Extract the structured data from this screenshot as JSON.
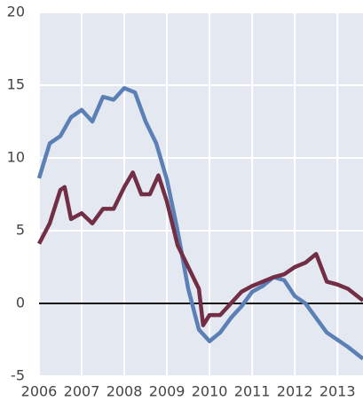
{
  "chart_data": {
    "type": "line",
    "xlim": [
      2006,
      2013.6
    ],
    "xticks": [
      2006,
      2007,
      2008,
      2009,
      2010,
      2011,
      2012,
      2013
    ],
    "ylim": [
      -5,
      20
    ],
    "yticks": [
      -5,
      0,
      5,
      10,
      15,
      20
    ],
    "grid": true,
    "series": [
      {
        "color": "#5b80b6",
        "x": [
          2006.0,
          2006.25,
          2006.5,
          2006.75,
          2007.0,
          2007.25,
          2007.5,
          2007.75,
          2008.0,
          2008.25,
          2008.5,
          2008.75,
          2009.0,
          2009.25,
          2009.5,
          2009.75,
          2010.0,
          2010.25,
          2010.5,
          2010.75,
          2011.0,
          2011.25,
          2011.5,
          2011.75,
          2012.0,
          2012.25,
          2012.5,
          2012.75,
          2013.0,
          2013.25,
          2013.6
        ],
        "values": [
          8.6,
          11.0,
          11.5,
          12.8,
          13.3,
          12.5,
          14.2,
          14.0,
          14.8,
          14.5,
          12.5,
          11.0,
          8.5,
          5.0,
          1.0,
          -1.8,
          -2.6,
          -2.0,
          -1.0,
          -0.2,
          0.8,
          1.2,
          1.8,
          1.6,
          0.5,
          0.0,
          -1.0,
          -2.0,
          -2.5,
          -3.0,
          -3.8
        ]
      },
      {
        "color": "#722e44",
        "x": [
          2006.0,
          2006.25,
          2006.5,
          2006.6,
          2006.75,
          2007.0,
          2007.25,
          2007.5,
          2007.75,
          2008.0,
          2008.2,
          2008.4,
          2008.6,
          2008.8,
          2009.0,
          2009.25,
          2009.5,
          2009.75,
          2009.85,
          2010.0,
          2010.25,
          2010.5,
          2010.75,
          2011.0,
          2011.25,
          2011.5,
          2011.75,
          2012.0,
          2012.25,
          2012.5,
          2012.75,
          2013.0,
          2013.25,
          2013.6
        ],
        "values": [
          4.1,
          5.5,
          7.8,
          8.0,
          5.8,
          6.2,
          5.5,
          6.5,
          6.5,
          8.0,
          9.0,
          7.5,
          7.5,
          8.8,
          7.0,
          4.0,
          2.5,
          1.0,
          -1.5,
          -0.8,
          -0.8,
          0.0,
          0.8,
          1.2,
          1.5,
          1.8,
          2.0,
          2.5,
          2.8,
          3.4,
          1.5,
          1.3,
          1.0,
          0.2
        ]
      }
    ]
  }
}
